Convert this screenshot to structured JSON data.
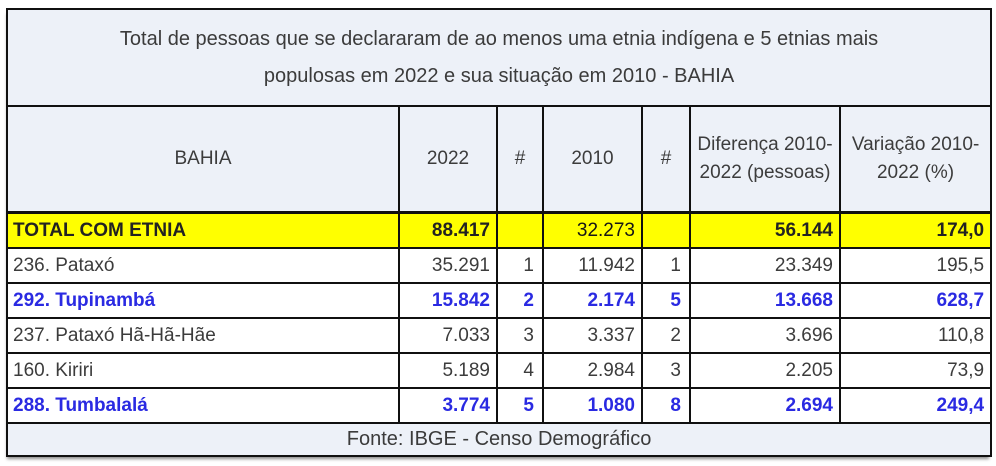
{
  "chart_data": {
    "type": "table",
    "title": "Total de pessoas que se declararam de ao menos uma etnia indígena e 5 etnias mais populosas em 2022 e sua situação em 2010 - BAHIA",
    "columns": [
      "BAHIA",
      "2022",
      "#",
      "2010",
      "#",
      "Diferença 2010-2022 (pessoas)",
      "Variação 2010-2022 (%)"
    ],
    "rows": [
      {
        "name": "TOTAL COM ETNIA",
        "v2022": "88.417",
        "rank2022": "",
        "v2010": "32.273",
        "rank2010": "",
        "diff": "56.144",
        "variation": "174,0",
        "emphasis": "total-highlight-yellow"
      },
      {
        "name": "236. Pataxó",
        "v2022": "35.291",
        "rank2022": "1",
        "v2010": "11.942",
        "rank2010": "1",
        "diff": "23.349",
        "variation": "195,5",
        "emphasis": "none"
      },
      {
        "name": "292. Tupinambá",
        "v2022": "15.842",
        "rank2022": "2",
        "v2010": "2.174",
        "rank2010": "5",
        "diff": "13.668",
        "variation": "628,7",
        "emphasis": "blue-bold"
      },
      {
        "name": "237. Pataxó Hã-Hã-Hãe",
        "v2022": "7.033",
        "rank2022": "3",
        "v2010": "3.337",
        "rank2010": "2",
        "diff": "3.696",
        "variation": "110,8",
        "emphasis": "none"
      },
      {
        "name": "160. Kiriri",
        "v2022": "5.189",
        "rank2022": "4",
        "v2010": "2.984",
        "rank2010": "3",
        "diff": "2.205",
        "variation": "73,9",
        "emphasis": "none"
      },
      {
        "name": "288. Tumbalalá",
        "v2022": "3.774",
        "rank2022": "5",
        "v2010": "1.080",
        "rank2010": "8",
        "diff": "2.694",
        "variation": "249,4",
        "emphasis": "blue-bold"
      }
    ],
    "footer": "Fonte: IBGE - Censo Demográfico",
    "colors": {
      "band_background": "#edf1f8",
      "highlight_row_background": "#ffff00",
      "accent_text": "#2a2ae2",
      "body_text": "#3c3c3c",
      "grid_border": "#101010"
    }
  }
}
